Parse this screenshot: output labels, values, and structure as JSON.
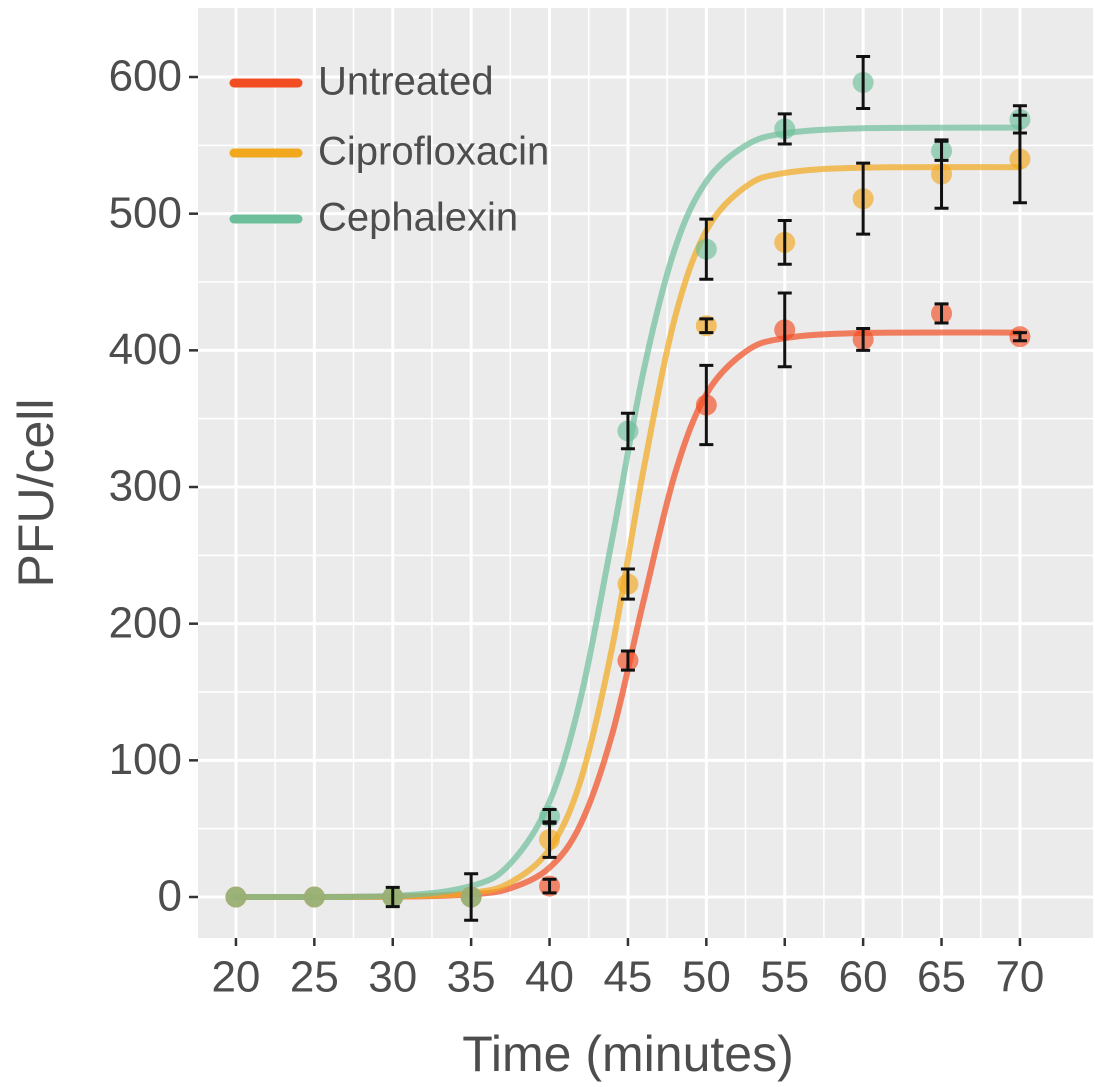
{
  "chart_data": {
    "type": "scatter",
    "x_label": "Time (minutes)",
    "y_label": "PFU/cell",
    "x": [
      20,
      25,
      30,
      35,
      40,
      45,
      50,
      55,
      60,
      65,
      70
    ],
    "fit_x": [
      20,
      30,
      35,
      37.5,
      40,
      42,
      44,
      46,
      48,
      50,
      52.5,
      55,
      60,
      70
    ],
    "series": [
      {
        "name": "Untreated",
        "color": "#f24d22",
        "values": [
          0,
          0,
          0,
          0,
          8,
          173,
          360,
          415,
          408,
          427,
          410
        ],
        "errors": [
          null,
          null,
          null,
          null,
          5,
          7,
          29,
          27,
          8,
          7,
          3
        ],
        "fit": [
          0,
          0.2,
          1.9,
          6.4,
          21.5,
          53.7,
          119.4,
          216.8,
          309.8,
          368,
          399,
          408.9,
          412.7,
          413
        ]
      },
      {
        "name": "Ciprofloxacin",
        "color": "#f2a81d",
        "values": [
          0,
          0,
          0,
          0,
          42,
          229,
          418,
          479,
          511,
          529,
          540
        ],
        "errors": [
          null,
          null,
          null,
          null,
          13,
          11,
          5,
          16,
          26,
          25,
          32
        ],
        "fit": [
          0,
          0.3,
          3.1,
          10.6,
          35.2,
          85.9,
          183,
          313,
          424,
          487.6,
          519.7,
          529.8,
          533.7,
          534
        ]
      },
      {
        "name": "Cephalexin",
        "color": "#6dbf9b",
        "values": [
          0,
          0,
          0,
          0,
          59,
          341,
          474,
          562,
          596,
          546,
          569
        ],
        "errors": [
          null,
          null,
          7,
          17,
          5,
          13,
          22,
          11,
          19,
          7,
          10
        ],
        "fit": [
          0,
          0.8,
          8.0,
          24.5,
          69.8,
          146.4,
          262.4,
          385.1,
          474.6,
          523.6,
          549.8,
          558.7,
          562.5,
          563
        ]
      }
    ],
    "xlim": [
      17.58,
      74.66
    ],
    "ylim": [
      -30,
      650.5
    ],
    "xticks": [
      20,
      25,
      30,
      35,
      40,
      45,
      50,
      55,
      60,
      65,
      70
    ],
    "yticks": [
      0,
      100,
      200,
      300,
      400,
      500,
      600
    ],
    "grid": true,
    "legend": "top-left"
  }
}
